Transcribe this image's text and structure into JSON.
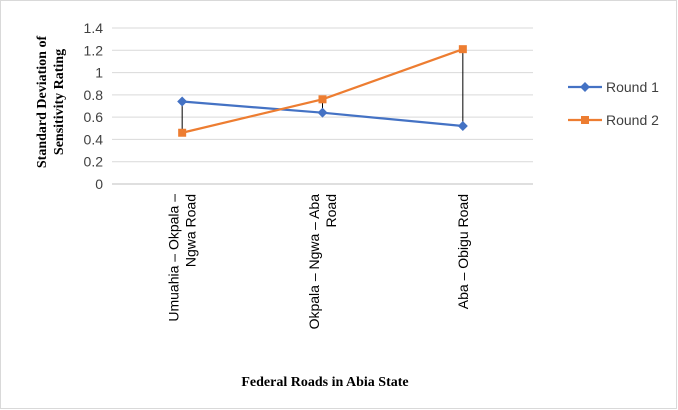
{
  "chart_data": {
    "type": "line",
    "categories": [
      [
        "Umuahia – Okpala –",
        "Ngwa  Road"
      ],
      [
        "Okpala – Ngwa – Aba",
        "Road"
      ],
      [
        "Aba – Obigu Road"
      ]
    ],
    "series": [
      {
        "name": "Round 1",
        "values": [
          0.74,
          0.64,
          0.52
        ],
        "color": "#4472c4",
        "marker": "diamond"
      },
      {
        "name": "Round 2",
        "values": [
          0.46,
          0.76,
          1.21
        ],
        "color": "#ed7d31",
        "marker": "square"
      }
    ],
    "xlabel": "Federal Roads  in  Abia State",
    "ylabel_lines": [
      "Standard Deviation of",
      "Sensitivity Rating"
    ],
    "ylim": [
      0,
      1.4
    ],
    "yticks": [
      0,
      0.2,
      0.4,
      0.6,
      0.8,
      1,
      1.2,
      1.4
    ],
    "ytick_labels": [
      "0",
      "0.2",
      "0.4",
      "0.6",
      "0.8",
      "1",
      "1.2",
      "1.4"
    ],
    "grid": true,
    "hi_lo_lines": true,
    "legend_position": "right"
  }
}
